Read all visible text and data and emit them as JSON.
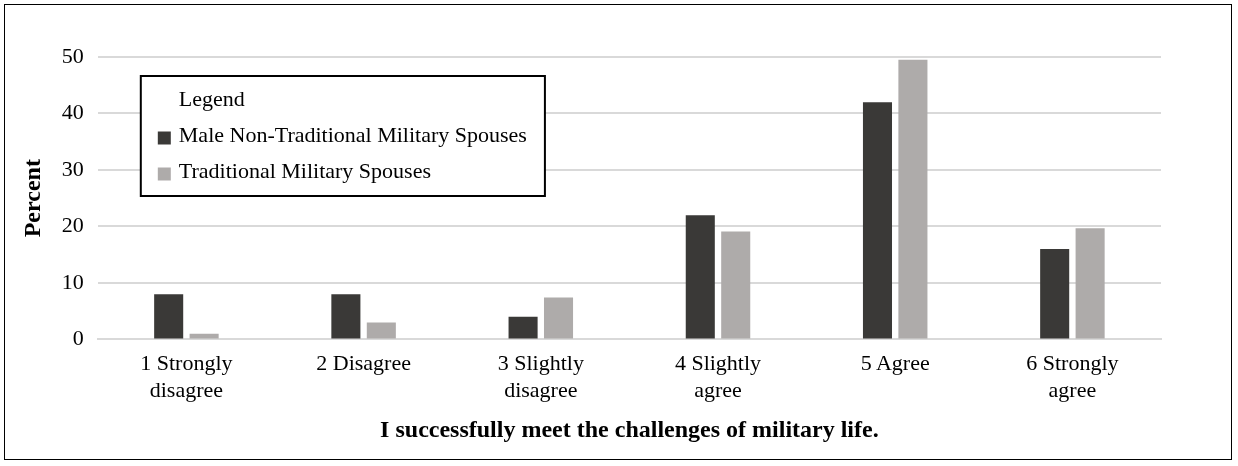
{
  "chart_data": {
    "type": "bar",
    "xlabel": "I successfully meet the challenges of military life.",
    "ylabel": "Percent",
    "legend_title": "Legend",
    "categories": [
      "1 Strongly disagree",
      "2 Disagree",
      "3 Slightly disagree",
      "4 Slightly agree",
      "5 Agree",
      "6 Strongly agree"
    ],
    "series": [
      {
        "name": "Male Non-Traditional Military Spouses",
        "color": "#3a3937",
        "values": [
          8,
          8,
          4,
          22,
          42,
          16
        ]
      },
      {
        "name": "Traditional Military Spouses",
        "color": "#aeabaa",
        "values": [
          1,
          3,
          7.4,
          19.1,
          49.5,
          19.7
        ]
      }
    ],
    "ylim": [
      0,
      50
    ],
    "yticks": [
      0,
      10,
      20,
      30,
      40,
      50
    ],
    "grid": "y",
    "legend": "top left"
  }
}
